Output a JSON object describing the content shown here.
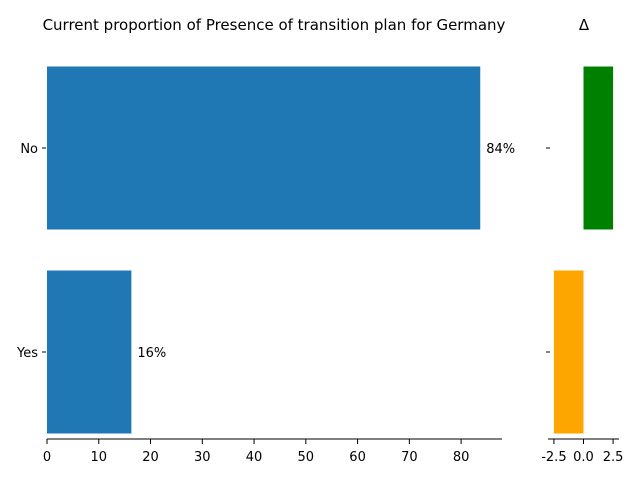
{
  "chart_data": [
    {
      "type": "bar",
      "orientation": "horizontal",
      "title": "Current proportion of Presence of transition plan for Germany",
      "categories": [
        "No",
        "Yes"
      ],
      "values": [
        83.7,
        16.3
      ],
      "value_labels": [
        "84%",
        "16%"
      ],
      "xlim": [
        0,
        87.9
      ],
      "xticks": [
        0,
        10,
        20,
        30,
        40,
        50,
        60,
        70,
        80
      ],
      "bar_color": "#1f77b4",
      "grid": false
    },
    {
      "type": "bar",
      "orientation": "horizontal",
      "title": "Δ",
      "categories": [
        "No",
        "Yes"
      ],
      "values": [
        2.5,
        -2.5
      ],
      "colors": [
        "#008000",
        "#ffa500"
      ],
      "xlim": [
        -3.0,
        3.0
      ],
      "xticks": [
        "-2.5",
        "0.0",
        "2.5"
      ],
      "grid": false
    }
  ]
}
